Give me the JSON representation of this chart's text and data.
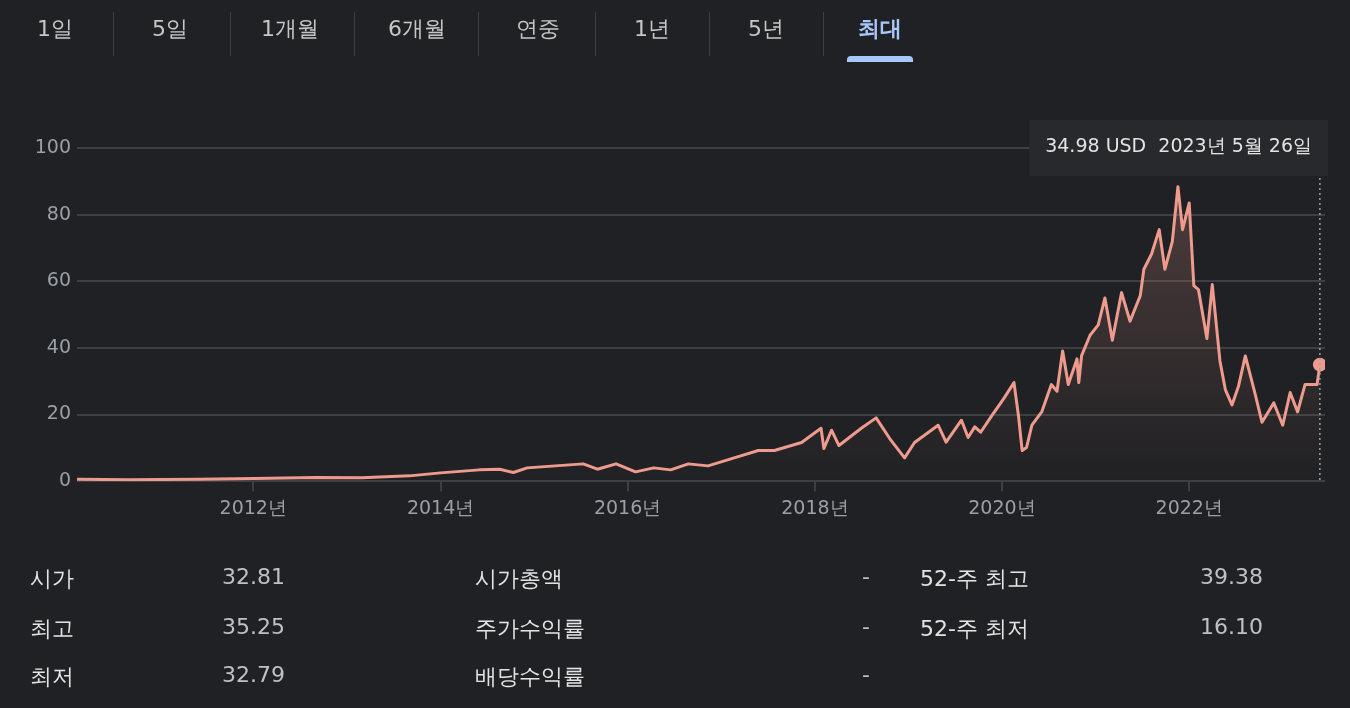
{
  "chart_data": [
    {
      "type": "other",
      "categories": [
        "1일",
        "5일",
        "1개월",
        "6개월",
        "연중",
        "1년",
        "5년",
        "최대"
      ]
    },
    {
      "type": "area",
      "x": [
        "2010-02-12",
        "2010-09-01",
        "2011-06-01",
        "2012-01-01",
        "2012-09-01",
        "2013-03-01",
        "2013-09-01",
        "2014-01-01",
        "2014-06-01",
        "2014-08-20",
        "2014-10-12",
        "2014-12-05",
        "2015-07-12",
        "2015-09-05",
        "2015-11-17",
        "2016-02-01",
        "2016-04-12",
        "2016-06-17",
        "2016-08-25",
        "2016-11-10",
        "2017-02-20",
        "2017-05-25",
        "2017-07-27",
        "2017-11-10",
        "2018-01-25",
        "2018-02-05",
        "2018-03-07",
        "2018-04-05",
        "2018-07-01",
        "2018-08-28",
        "2018-10-20",
        "2018-12-17",
        "2019-01-25",
        "2019-04-27",
        "2019-05-28",
        "2019-07-27",
        "2019-08-22",
        "2019-09-17",
        "2019-10-10",
        "2019-11-20",
        "2020-01-10",
        "2020-02-17",
        "2020-03-06",
        "2020-03-20",
        "2020-04-06",
        "2020-04-27",
        "2020-06-05",
        "2020-07-12",
        "2020-08-03",
        "2020-08-25",
        "2020-09-16",
        "2020-10-20",
        "2020-10-27",
        "2020-11-07",
        "2020-12-10",
        "2021-01-11",
        "2021-02-06",
        "2021-03-07",
        "2021-04-12",
        "2021-05-15",
        "2021-06-24",
        "2021-07-08",
        "2021-08-07",
        "2021-09-06",
        "2021-09-28",
        "2021-10-27",
        "2021-11-18",
        "2021-12-06",
        "2022-01-01",
        "2022-01-19",
        "2022-02-06",
        "2022-03-11",
        "2022-04-01",
        "2022-05-01",
        "2022-05-22",
        "2022-06-17",
        "2022-07-12",
        "2022-08-08",
        "2022-09-13",
        "2022-10-12",
        "2022-11-27",
        "2023-01-01",
        "2023-01-30",
        "2023-02-28",
        "2023-03-29",
        "2023-05-15",
        "2023-05-26"
      ],
      "series": [
        {
          "color": "#ee9b8e",
          "values": [
            0.6,
            0.4,
            0.6,
            0.8,
            1.1,
            1.0,
            1.6,
            2.5,
            3.4,
            3.6,
            2.6,
            4.0,
            5.2,
            3.6,
            5.2,
            2.8,
            4.0,
            3.4,
            5.2,
            4.6,
            7.0,
            9.2,
            9.2,
            11.6,
            15.9,
            9.8,
            15.3,
            10.7,
            15.9,
            19.0,
            12.8,
            7.0,
            11.6,
            16.8,
            11.7,
            18.3,
            13.1,
            16.3,
            14.7,
            19.4,
            25.0,
            29.6,
            19.4,
            9.2,
            10.1,
            16.8,
            20.9,
            29.0,
            27.0,
            39.1,
            29.0,
            36.7,
            29.6,
            37.7,
            43.8,
            46.9,
            55.0,
            42.3,
            56.6,
            48.0,
            55.7,
            63.6,
            68.2,
            75.5,
            63.6,
            71.9,
            88.4,
            75.5,
            83.5,
            58.7,
            57.5,
            42.8,
            59.0,
            36.1,
            27.5,
            22.9,
            28.4,
            37.6,
            26.9,
            17.7,
            23.5,
            16.8,
            26.6,
            20.8,
            29.0,
            29.0,
            34.98
          ]
        }
      ],
      "xlim": [
        "2010-02-12",
        "2023-06-15"
      ],
      "xticks": [
        {
          "value": "2012-01-01",
          "label": "2012년"
        },
        {
          "value": "2014-01-01",
          "label": "2014년"
        },
        {
          "value": "2016-01-01",
          "label": "2016년"
        },
        {
          "value": "2018-01-01",
          "label": "2018년"
        },
        {
          "value": "2020-01-01",
          "label": "2020년"
        },
        {
          "value": "2022-01-01",
          "label": "2022년"
        }
      ],
      "ylim": [
        0,
        100
      ],
      "yticks": [
        0,
        20,
        40,
        60,
        80,
        100
      ],
      "grid": "y",
      "legend": false,
      "ref_lines": [
        {
          "axis": "x",
          "value": "2023-05-26",
          "line_style": "dotted",
          "color": "#9aa0a6"
        }
      ],
      "annotations": [
        "34.98 USD  2023년 5월 26일"
      ]
    },
    {
      "type": "other",
      "annotations": [
        "시가",
        "32.81",
        "시가총액",
        "-",
        "52-주 최고",
        "39.38",
        "최고",
        "35.25",
        "주가수익률",
        "-",
        "52-주 최저",
        "16.10",
        "최저",
        "32.79",
        "배당수익률",
        "-"
      ]
    }
  ]
}
